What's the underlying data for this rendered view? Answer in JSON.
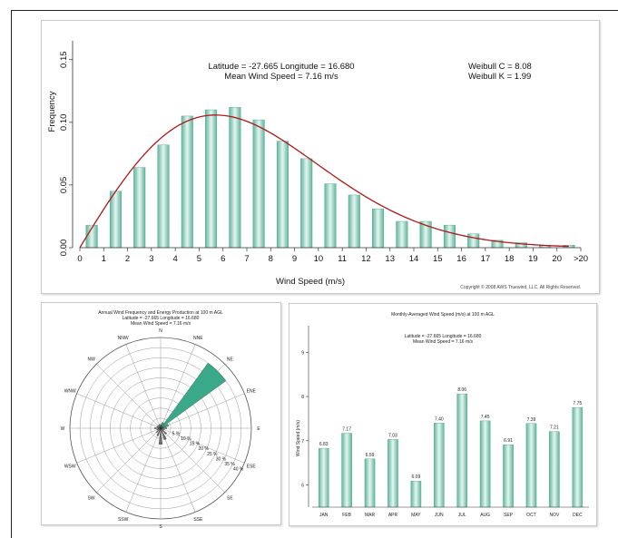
{
  "chart_data": [
    {
      "type": "bar",
      "title": "",
      "annotations": {
        "location_line": "Latitude = -27.665 Longitude = 16.680",
        "mean_line": "Mean Wind Speed = 7.16 m/s",
        "weibull_c": "Weibull C = 8.08",
        "weibull_k": "Weibull K = 1.99",
        "copyright": "Copyright © 2008 AWS Truewind, LLC. All Rights Reserved."
      },
      "xlabel": "Wind Speed (m/s)",
      "ylabel": "Frequency",
      "x_tick_labels": [
        "0",
        "1",
        "2",
        "3",
        "4",
        "5",
        "6",
        "7",
        "8",
        "9",
        "10",
        "11",
        "12",
        "13",
        "14",
        "15",
        "16",
        "17",
        "18",
        "19",
        "20",
        ">20"
      ],
      "y_tick_labels": [
        "0.00",
        "0.05",
        "0.10",
        "0.15"
      ],
      "y_ticks": [
        0,
        0.05,
        0.1,
        0.15
      ],
      "ylim": [
        0,
        0.165
      ],
      "bin_centers": [
        0.5,
        1.5,
        2.5,
        3.5,
        4.5,
        5.5,
        6.5,
        7.5,
        8.5,
        9.5,
        10.5,
        11.5,
        12.5,
        13.5,
        14.5,
        15.5,
        16.5,
        17.5,
        18.5,
        19.5,
        20.5
      ],
      "values": [
        0.018,
        0.045,
        0.064,
        0.082,
        0.105,
        0.11,
        0.112,
        0.102,
        0.085,
        0.071,
        0.051,
        0.042,
        0.031,
        0.021,
        0.021,
        0.018,
        0.011,
        0.006,
        0.004,
        0.002,
        0.002
      ],
      "fit_line": {
        "type": "weibull",
        "c": 8.08,
        "k": 1.99,
        "color": "#b01818"
      },
      "bar_color": "#7fc7b4",
      "grid": false
    },
    {
      "type": "polar-bar",
      "title": "Annual Wind Frequency and Energy Production at 100 m AGL",
      "subtitle_1": "Latitude = -27.665 Longitude = 16.680",
      "subtitle_2": "Mean Wind Speed = 7.16 m/s",
      "directions": [
        "N",
        "NNE",
        "NE",
        "ENE",
        "E",
        "ESE",
        "SE",
        "SSE",
        "S",
        "SSW",
        "SW",
        "WSW",
        "W",
        "WNW",
        "NW",
        "NNW"
      ],
      "ring_labels": [
        "5 %",
        "10 %",
        "15 %",
        "20 %",
        "25 %",
        "30 %",
        "35 %",
        "40 %"
      ],
      "ring_values": [
        5,
        10,
        15,
        20,
        25,
        30,
        35,
        40
      ],
      "rmax": 45,
      "energy_percent": [
        1,
        3,
        40,
        4,
        1,
        0.5,
        0.5,
        0.5,
        0.5,
        0.5,
        0.5,
        0.5,
        0.5,
        0.5,
        0.5,
        0.5
      ],
      "frequency_percent": [
        2,
        3,
        7,
        4,
        3,
        2,
        4,
        6,
        8,
        4,
        3,
        2,
        3,
        2,
        2,
        2
      ],
      "energy_color": "#3aa98a",
      "frequency_color": "#6e6e6e",
      "grid": true
    },
    {
      "type": "bar",
      "title": "Monthly-Averaged Wind Speed (m/s) at 100 m AGL",
      "subtitle_1": "Latitude = -27.665 Longitude = 16.680",
      "subtitle_2": "Mean Wind Speed = 7.16 m/s",
      "ylabel": "Wind Speed (m/s)",
      "categories": [
        "JAN",
        "FEB",
        "MAR",
        "APR",
        "MAY",
        "JUN",
        "JUL",
        "AUG",
        "SEP",
        "OCT",
        "NOV",
        "DEC"
      ],
      "values": [
        6.83,
        7.17,
        6.59,
        7.03,
        6.09,
        7.4,
        8.06,
        7.45,
        6.91,
        7.39,
        7.21,
        7.75
      ],
      "value_labels": [
        "6.83",
        "7.17",
        "6.59",
        "7.03",
        "6.09",
        "7.40",
        "8.06",
        "7.45",
        "6.91",
        "7.39",
        "7.21",
        "7.75"
      ],
      "y_tick_labels": [
        "5",
        "6",
        "7",
        "8",
        "9"
      ],
      "y_ticks": [
        5,
        6,
        7,
        8,
        9
      ],
      "ylim": [
        5.5,
        9.6
      ],
      "bar_color": "#7fc7b4",
      "grid": false
    }
  ]
}
